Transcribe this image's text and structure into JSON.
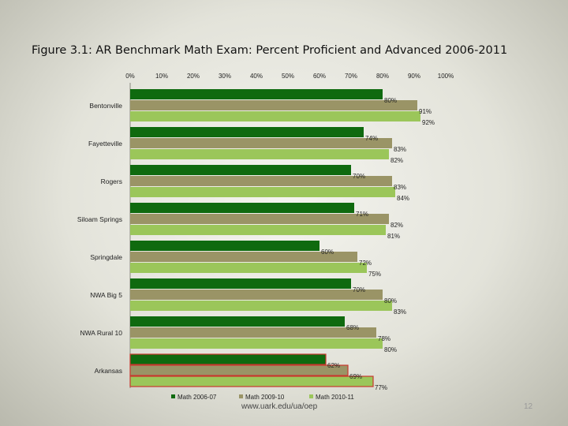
{
  "title": "Figure 3.1: AR Benchmark Math Exam: Percent Proficient and Advanced 2006-2011",
  "footer": {
    "url": "www.uark.edu/ua/oep",
    "page": "12"
  },
  "chart_data": {
    "type": "bar",
    "orientation": "horizontal",
    "axis_position": "top",
    "xlim": [
      0,
      100
    ],
    "ticks": [
      "0%",
      "10%",
      "20%",
      "30%",
      "40%",
      "50%",
      "60%",
      "70%",
      "80%",
      "90%",
      "100%"
    ],
    "categories": [
      "Bentonville",
      "Fayetteville",
      "Rogers",
      "Siloam Springs",
      "Springdale",
      "NWA Big 5",
      "NWA Rural 10",
      "Arkansas"
    ],
    "series": [
      {
        "name": "Math 2006-07",
        "color": "#0f6a0f",
        "values": [
          80,
          74,
          70,
          71,
          60,
          70,
          68,
          62
        ]
      },
      {
        "name": "Math 2009-10",
        "color": "#9a9466",
        "values": [
          91,
          83,
          83,
          82,
          72,
          80,
          78,
          69
        ]
      },
      {
        "name": "Math 2010-11",
        "color": "#9bc65a",
        "values": [
          92,
          82,
          84,
          81,
          75,
          83,
          80,
          77
        ]
      }
    ],
    "highlight_category": "Arkansas",
    "highlight_outline_color": "#c8382e",
    "legend_position": "bottom",
    "grid": false
  }
}
